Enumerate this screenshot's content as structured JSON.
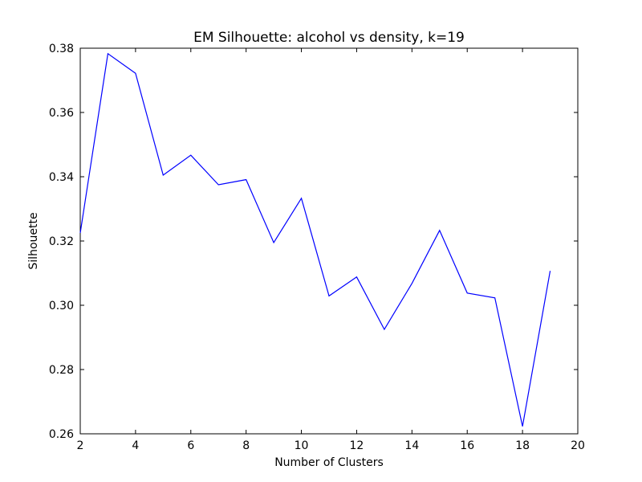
{
  "chart_data": {
    "type": "line",
    "title": "EM Silhouette: alcohol vs density, k=19",
    "xlabel": "Number of Clusters",
    "ylabel": "Silhouette",
    "xlim": [
      2,
      20
    ],
    "ylim": [
      0.26,
      0.38
    ],
    "xticks": [
      2,
      4,
      6,
      8,
      10,
      12,
      14,
      16,
      18,
      20
    ],
    "xtick_labels": [
      "2",
      "4",
      "6",
      "8",
      "10",
      "12",
      "14",
      "16",
      "18",
      "20"
    ],
    "yticks": [
      0.26,
      0.28,
      0.3,
      0.32,
      0.34,
      0.36,
      0.38
    ],
    "ytick_labels": [
      "0.26",
      "0.28",
      "0.30",
      "0.32",
      "0.34",
      "0.36",
      "0.38"
    ],
    "grid": false,
    "legend": "none",
    "series": [
      {
        "color": "#0000ff",
        "x": [
          2,
          3,
          4,
          5,
          6,
          7,
          8,
          9,
          10,
          11,
          12,
          13,
          14,
          15,
          16,
          17,
          18,
          19
        ],
        "y": [
          0.3225,
          0.3783,
          0.3722,
          0.3405,
          0.3467,
          0.3375,
          0.3391,
          0.3195,
          0.3333,
          0.3029,
          0.3088,
          0.2925,
          0.3068,
          0.3233,
          0.3038,
          0.3023,
          0.2623,
          0.3107
        ]
      }
    ]
  }
}
